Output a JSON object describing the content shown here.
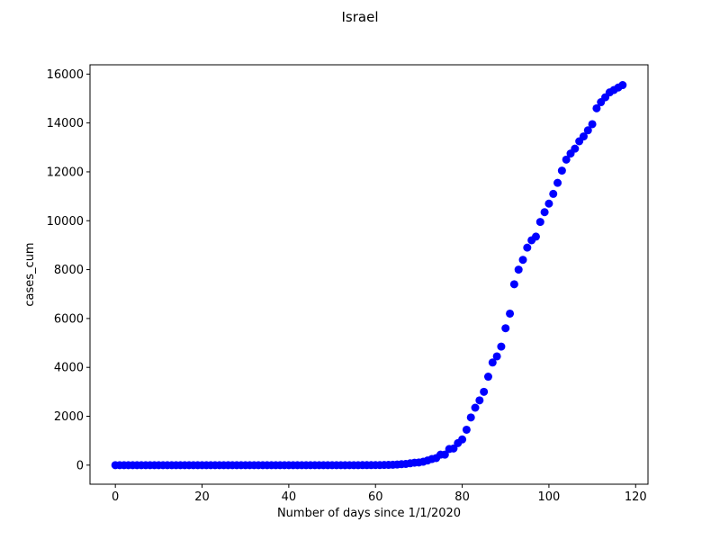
{
  "chart_data": {
    "type": "scatter",
    "title": "Israel",
    "xlabel": "Number of days since 1/1/2020",
    "ylabel": "cases_cum",
    "xlim": [
      -5.85,
      122.85
    ],
    "ylim": [
      -780,
      16380
    ],
    "x_ticks": [
      0,
      20,
      40,
      60,
      80,
      100,
      120
    ],
    "y_ticks": [
      0,
      2000,
      4000,
      6000,
      8000,
      10000,
      12000,
      14000,
      16000
    ],
    "grid": false,
    "marker_color": "#0000ff",
    "x": [
      0,
      1,
      2,
      3,
      4,
      5,
      6,
      7,
      8,
      9,
      10,
      11,
      12,
      13,
      14,
      15,
      16,
      17,
      18,
      19,
      20,
      21,
      22,
      23,
      24,
      25,
      26,
      27,
      28,
      29,
      30,
      31,
      32,
      33,
      34,
      35,
      36,
      37,
      38,
      39,
      40,
      41,
      42,
      43,
      44,
      45,
      46,
      47,
      48,
      49,
      50,
      51,
      52,
      53,
      54,
      55,
      56,
      57,
      58,
      59,
      60,
      61,
      62,
      63,
      64,
      65,
      66,
      67,
      68,
      69,
      70,
      71,
      72,
      73,
      74,
      75,
      76,
      77,
      78,
      79,
      80,
      81,
      82,
      83,
      84,
      85,
      86,
      87,
      88,
      89,
      90,
      91,
      92,
      93,
      94,
      95,
      96,
      97,
      98,
      99,
      100,
      101,
      102,
      103,
      104,
      105,
      106,
      107,
      108,
      109,
      110,
      111,
      112,
      113,
      114,
      115,
      116,
      117
    ],
    "y": [
      0,
      0,
      0,
      0,
      0,
      0,
      0,
      0,
      0,
      0,
      0,
      0,
      0,
      0,
      0,
      0,
      0,
      0,
      0,
      0,
      0,
      0,
      0,
      0,
      0,
      0,
      0,
      0,
      0,
      0,
      0,
      0,
      0,
      0,
      0,
      0,
      0,
      0,
      0,
      0,
      0,
      0,
      0,
      0,
      0,
      0,
      0,
      0,
      0,
      0,
      0,
      0,
      0,
      0,
      0,
      0,
      0,
      1,
      1,
      2,
      3,
      4,
      7,
      10,
      15,
      25,
      39,
      50,
      75,
      100,
      110,
      140,
      190,
      250,
      290,
      430,
      430,
      660,
      680,
      900,
      1050,
      1450,
      1950,
      2350,
      2650,
      3000,
      3620,
      4200,
      4450,
      4850,
      5600,
      6200,
      7400,
      8000,
      8400,
      8900,
      9200,
      9350,
      9950,
      10350,
      10700,
      11100,
      11550,
      12050,
      12500,
      12750,
      12950,
      13250,
      13450,
      13700,
      13950,
      14600,
      14850,
      15050,
      15250,
      15350,
      15450,
      15550
    ]
  }
}
